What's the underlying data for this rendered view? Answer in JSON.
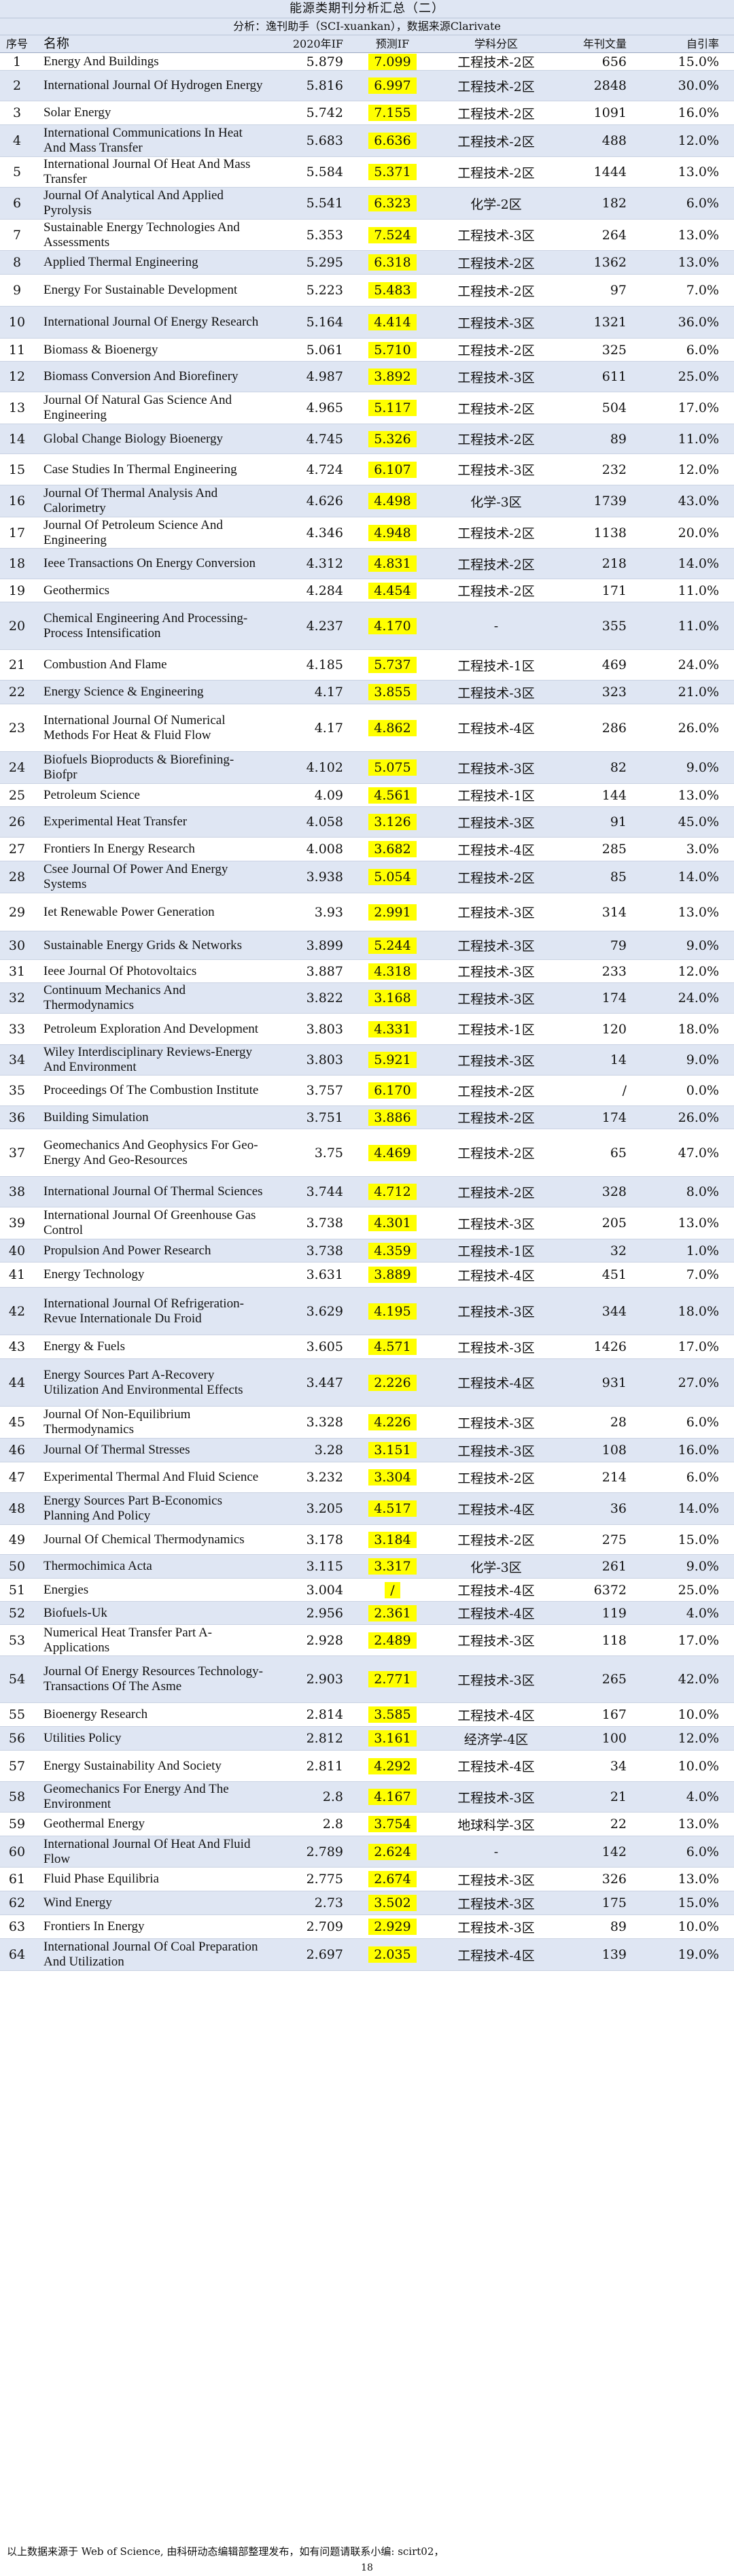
{
  "header": {
    "title": "能源类期刊分析汇总（二）",
    "subtitle": "分析：逸刊助手（SCI-xuankan），数据来源Clarivate",
    "columns": [
      "序号",
      "名称",
      "2020年IF",
      "预测IF",
      "学科分区",
      "年刊文量",
      "自引率"
    ]
  },
  "rows": [
    {
      "seq": "1",
      "name": "Energy And Buildings",
      "if2020": "5.879",
      "pred": "7.099",
      "zone": "工程技术-2区",
      "vol": "656",
      "cite": "15.0%"
    },
    {
      "seq": "2",
      "name": "International Journal Of Hydrogen Energy",
      "if2020": "5.816",
      "pred": "6.997",
      "zone": "工程技术-2区",
      "vol": "2848",
      "cite": "30.0%"
    },
    {
      "seq": "3",
      "name": "Solar Energy",
      "if2020": "5.742",
      "pred": "7.155",
      "zone": "工程技术-2区",
      "vol": "1091",
      "cite": "16.0%"
    },
    {
      "seq": "4",
      "name": "International Communications In Heat And Mass Transfer",
      "if2020": "5.683",
      "pred": "6.636",
      "zone": "工程技术-2区",
      "vol": "488",
      "cite": "12.0%"
    },
    {
      "seq": "5",
      "name": "International Journal Of Heat And Mass Transfer",
      "if2020": "5.584",
      "pred": "5.371",
      "zone": "工程技术-2区",
      "vol": "1444",
      "cite": "13.0%"
    },
    {
      "seq": "6",
      "name": "Journal Of Analytical And Applied Pyrolysis",
      "if2020": "5.541",
      "pred": "6.323",
      "zone": "化学-2区",
      "vol": "182",
      "cite": "6.0%"
    },
    {
      "seq": "7",
      "name": "Sustainable Energy Technologies And Assessments",
      "if2020": "5.353",
      "pred": "7.524",
      "zone": "工程技术-3区",
      "vol": "264",
      "cite": "13.0%"
    },
    {
      "seq": "8",
      "name": "Applied Thermal Engineering",
      "if2020": "5.295",
      "pred": "6.318",
      "zone": "工程技术-2区",
      "vol": "1362",
      "cite": "13.0%"
    },
    {
      "seq": "9",
      "name": "Energy For Sustainable Development",
      "if2020": "5.223",
      "pred": "5.483",
      "zone": "工程技术-2区",
      "vol": "97",
      "cite": "7.0%"
    },
    {
      "seq": "10",
      "name": "International Journal Of Energy Research",
      "if2020": "5.164",
      "pred": "4.414",
      "zone": "工程技术-3区",
      "vol": "1321",
      "cite": "36.0%"
    },
    {
      "seq": "11",
      "name": "Biomass & Bioenergy",
      "if2020": "5.061",
      "pred": "5.710",
      "zone": "工程技术-2区",
      "vol": "325",
      "cite": "6.0%"
    },
    {
      "seq": "12",
      "name": "Biomass Conversion And Biorefinery",
      "if2020": "4.987",
      "pred": "3.892",
      "zone": "工程技术-3区",
      "vol": "611",
      "cite": "25.0%"
    },
    {
      "seq": "13",
      "name": "Journal Of Natural Gas Science And Engineering",
      "if2020": "4.965",
      "pred": "5.117",
      "zone": "工程技术-2区",
      "vol": "504",
      "cite": "17.0%"
    },
    {
      "seq": "14",
      "name": "Global Change Biology Bioenergy",
      "if2020": "4.745",
      "pred": "5.326",
      "zone": "工程技术-2区",
      "vol": "89",
      "cite": "11.0%"
    },
    {
      "seq": "15",
      "name": "Case Studies In Thermal Engineering",
      "if2020": "4.724",
      "pred": "6.107",
      "zone": "工程技术-3区",
      "vol": "232",
      "cite": "12.0%"
    },
    {
      "seq": "16",
      "name": "Journal Of Thermal Analysis And Calorimetry",
      "if2020": "4.626",
      "pred": "4.498",
      "zone": "化学-3区",
      "vol": "1739",
      "cite": "43.0%"
    },
    {
      "seq": "17",
      "name": "Journal Of Petroleum Science And Engineering",
      "if2020": "4.346",
      "pred": "4.948",
      "zone": "工程技术-2区",
      "vol": "1138",
      "cite": "20.0%"
    },
    {
      "seq": "18",
      "name": "Ieee Transactions On Energy Conversion",
      "if2020": "4.312",
      "pred": "4.831",
      "zone": "工程技术-2区",
      "vol": "218",
      "cite": "14.0%"
    },
    {
      "seq": "19",
      "name": "Geothermics",
      "if2020": "4.284",
      "pred": "4.454",
      "zone": "工程技术-2区",
      "vol": "171",
      "cite": "11.0%"
    },
    {
      "seq": "20",
      "name": "Chemical Engineering And Processing-Process Intensification",
      "if2020": "4.237",
      "pred": "4.170",
      "zone": "-",
      "vol": "355",
      "cite": "11.0%"
    },
    {
      "seq": "21",
      "name": "Combustion And Flame",
      "if2020": "4.185",
      "pred": "5.737",
      "zone": "工程技术-1区",
      "vol": "469",
      "cite": "24.0%"
    },
    {
      "seq": "22",
      "name": "Energy Science & Engineering",
      "if2020": "4.17",
      "pred": "3.855",
      "zone": "工程技术-3区",
      "vol": "323",
      "cite": "21.0%"
    },
    {
      "seq": "23",
      "name": "International Journal Of Numerical Methods For Heat & Fluid Flow",
      "if2020": "4.17",
      "pred": "4.862",
      "zone": "工程技术-4区",
      "vol": "286",
      "cite": "26.0%"
    },
    {
      "seq": "24",
      "name": "Biofuels Bioproducts & Biorefining-Biofpr",
      "if2020": "4.102",
      "pred": "5.075",
      "zone": "工程技术-3区",
      "vol": "82",
      "cite": "9.0%"
    },
    {
      "seq": "25",
      "name": "Petroleum Science",
      "if2020": "4.09",
      "pred": "4.561",
      "zone": "工程技术-1区",
      "vol": "144",
      "cite": "13.0%"
    },
    {
      "seq": "26",
      "name": "Experimental Heat Transfer",
      "if2020": "4.058",
      "pred": "3.126",
      "zone": "工程技术-3区",
      "vol": "91",
      "cite": "45.0%"
    },
    {
      "seq": "27",
      "name": "Frontiers In Energy Research",
      "if2020": "4.008",
      "pred": "3.682",
      "zone": "工程技术-4区",
      "vol": "285",
      "cite": "3.0%"
    },
    {
      "seq": "28",
      "name": "Csee Journal Of Power And Energy Systems",
      "if2020": "3.938",
      "pred": "5.054",
      "zone": "工程技术-2区",
      "vol": "85",
      "cite": "14.0%"
    },
    {
      "seq": "29",
      "name": "Iet Renewable Power Generation",
      "if2020": "3.93",
      "pred": "2.991",
      "zone": "工程技术-3区",
      "vol": "314",
      "cite": "13.0%"
    },
    {
      "seq": "30",
      "name": "Sustainable Energy Grids & Networks",
      "if2020": "3.899",
      "pred": "5.244",
      "zone": "工程技术-3区",
      "vol": "79",
      "cite": "9.0%"
    },
    {
      "seq": "31",
      "name": "Ieee Journal Of Photovoltaics",
      "if2020": "3.887",
      "pred": "4.318",
      "zone": "工程技术-3区",
      "vol": "233",
      "cite": "12.0%"
    },
    {
      "seq": "32",
      "name": "Continuum Mechanics And Thermodynamics",
      "if2020": "3.822",
      "pred": "3.168",
      "zone": "工程技术-3区",
      "vol": "174",
      "cite": "24.0%"
    },
    {
      "seq": "33",
      "name": "Petroleum Exploration And Development",
      "if2020": "3.803",
      "pred": "4.331",
      "zone": "工程技术-1区",
      "vol": "120",
      "cite": "18.0%"
    },
    {
      "seq": "34",
      "name": "Wiley Interdisciplinary Reviews-Energy And Environment",
      "if2020": "3.803",
      "pred": "5.921",
      "zone": "工程技术-3区",
      "vol": "14",
      "cite": "9.0%"
    },
    {
      "seq": "35",
      "name": "Proceedings Of The Combustion Institute",
      "if2020": "3.757",
      "pred": "6.170",
      "zone": "工程技术-2区",
      "vol": "/",
      "cite": "0.0%"
    },
    {
      "seq": "36",
      "name": "Building Simulation",
      "if2020": "3.751",
      "pred": "3.886",
      "zone": "工程技术-2区",
      "vol": "174",
      "cite": "26.0%"
    },
    {
      "seq": "37",
      "name": "Geomechanics And Geophysics For Geo-Energy And Geo-Resources",
      "if2020": "3.75",
      "pred": "4.469",
      "zone": "工程技术-2区",
      "vol": "65",
      "cite": "47.0%"
    },
    {
      "seq": "38",
      "name": "International Journal Of Thermal Sciences",
      "if2020": "3.744",
      "pred": "4.712",
      "zone": "工程技术-2区",
      "vol": "328",
      "cite": "8.0%"
    },
    {
      "seq": "39",
      "name": "International Journal Of Greenhouse Gas Control",
      "if2020": "3.738",
      "pred": "4.301",
      "zone": "工程技术-3区",
      "vol": "205",
      "cite": "13.0%"
    },
    {
      "seq": "40",
      "name": "Propulsion And Power Research",
      "if2020": "3.738",
      "pred": "4.359",
      "zone": "工程技术-1区",
      "vol": "32",
      "cite": "1.0%"
    },
    {
      "seq": "41",
      "name": "Energy Technology",
      "if2020": "3.631",
      "pred": "3.889",
      "zone": "工程技术-4区",
      "vol": "451",
      "cite": "7.0%"
    },
    {
      "seq": "42",
      "name": "International Journal Of Refrigeration-Revue Internationale Du Froid",
      "if2020": "3.629",
      "pred": "4.195",
      "zone": "工程技术-3区",
      "vol": "344",
      "cite": "18.0%"
    },
    {
      "seq": "43",
      "name": "Energy & Fuels",
      "if2020": "3.605",
      "pred": "4.571",
      "zone": "工程技术-3区",
      "vol": "1426",
      "cite": "17.0%"
    },
    {
      "seq": "44",
      "name": "Energy Sources Part A-Recovery Utilization And Environmental Effects",
      "if2020": "3.447",
      "pred": "2.226",
      "zone": "工程技术-4区",
      "vol": "931",
      "cite": "27.0%"
    },
    {
      "seq": "45",
      "name": "Journal Of Non-Equilibrium Thermodynamics",
      "if2020": "3.328",
      "pred": "4.226",
      "zone": "工程技术-3区",
      "vol": "28",
      "cite": "6.0%"
    },
    {
      "seq": "46",
      "name": "Journal Of Thermal Stresses",
      "if2020": "3.28",
      "pred": "3.151",
      "zone": "工程技术-3区",
      "vol": "108",
      "cite": "16.0%"
    },
    {
      "seq": "47",
      "name": "Experimental Thermal And Fluid Science",
      "if2020": "3.232",
      "pred": "3.304",
      "zone": "工程技术-2区",
      "vol": "214",
      "cite": "6.0%"
    },
    {
      "seq": "48",
      "name": "Energy Sources Part B-Economics Planning And Policy",
      "if2020": "3.205",
      "pred": "4.517",
      "zone": "工程技术-4区",
      "vol": "36",
      "cite": "14.0%"
    },
    {
      "seq": "49",
      "name": "Journal Of Chemical Thermodynamics",
      "if2020": "3.178",
      "pred": "3.184",
      "zone": "工程技术-2区",
      "vol": "275",
      "cite": "15.0%"
    },
    {
      "seq": "50",
      "name": "Thermochimica Acta",
      "if2020": "3.115",
      "pred": "3.317",
      "zone": "化学-3区",
      "vol": "261",
      "cite": "9.0%"
    },
    {
      "seq": "51",
      "name": "Energies",
      "if2020": "3.004",
      "pred": "/",
      "zone": "工程技术-4区",
      "vol": "6372",
      "cite": "25.0%"
    },
    {
      "seq": "52",
      "name": "Biofuels-Uk",
      "if2020": "2.956",
      "pred": "2.361",
      "zone": "工程技术-4区",
      "vol": "119",
      "cite": "4.0%"
    },
    {
      "seq": "53",
      "name": "Numerical Heat Transfer Part A-Applications",
      "if2020": "2.928",
      "pred": "2.489",
      "zone": "工程技术-3区",
      "vol": "118",
      "cite": "17.0%"
    },
    {
      "seq": "54",
      "name": "Journal Of Energy Resources Technology-Transactions Of The Asme",
      "if2020": "2.903",
      "pred": "2.771",
      "zone": "工程技术-3区",
      "vol": "265",
      "cite": "42.0%"
    },
    {
      "seq": "55",
      "name": "Bioenergy Research",
      "if2020": "2.814",
      "pred": "3.585",
      "zone": "工程技术-4区",
      "vol": "167",
      "cite": "10.0%"
    },
    {
      "seq": "56",
      "name": "Utilities Policy",
      "if2020": "2.812",
      "pred": "3.161",
      "zone": "经济学-4区",
      "vol": "100",
      "cite": "12.0%"
    },
    {
      "seq": "57",
      "name": "Energy Sustainability And Society",
      "if2020": "2.811",
      "pred": "4.292",
      "zone": "工程技术-4区",
      "vol": "34",
      "cite": "10.0%"
    },
    {
      "seq": "58",
      "name": "Geomechanics For Energy And The Environment",
      "if2020": "2.8",
      "pred": "4.167",
      "zone": "工程技术-3区",
      "vol": "21",
      "cite": "4.0%"
    },
    {
      "seq": "59",
      "name": "Geothermal Energy",
      "if2020": "2.8",
      "pred": "3.754",
      "zone": "地球科学-3区",
      "vol": "22",
      "cite": "13.0%"
    },
    {
      "seq": "60",
      "name": "International Journal Of Heat And Fluid Flow",
      "if2020": "2.789",
      "pred": "2.624",
      "zone": "-",
      "vol": "142",
      "cite": "6.0%"
    },
    {
      "seq": "61",
      "name": "Fluid Phase Equilibria",
      "if2020": "2.775",
      "pred": "2.674",
      "zone": "工程技术-3区",
      "vol": "326",
      "cite": "13.0%"
    },
    {
      "seq": "62",
      "name": "Wind Energy",
      "if2020": "2.73",
      "pred": "3.502",
      "zone": "工程技术-3区",
      "vol": "175",
      "cite": "15.0%"
    },
    {
      "seq": "63",
      "name": "Frontiers In Energy",
      "if2020": "2.709",
      "pred": "2.929",
      "zone": "工程技术-3区",
      "vol": "89",
      "cite": "10.0%"
    },
    {
      "seq": "64",
      "name": "International Journal Of Coal Preparation And Utilization",
      "if2020": "2.697",
      "pred": "2.035",
      "zone": "工程技术-4区",
      "vol": "139",
      "cite": "19.0%"
    }
  ],
  "footer": {
    "note": "以上数据来源于 Web of Science, 由科研动态编辑部整理发布，如有问题请联系小编: scirt02，",
    "page": "18"
  }
}
